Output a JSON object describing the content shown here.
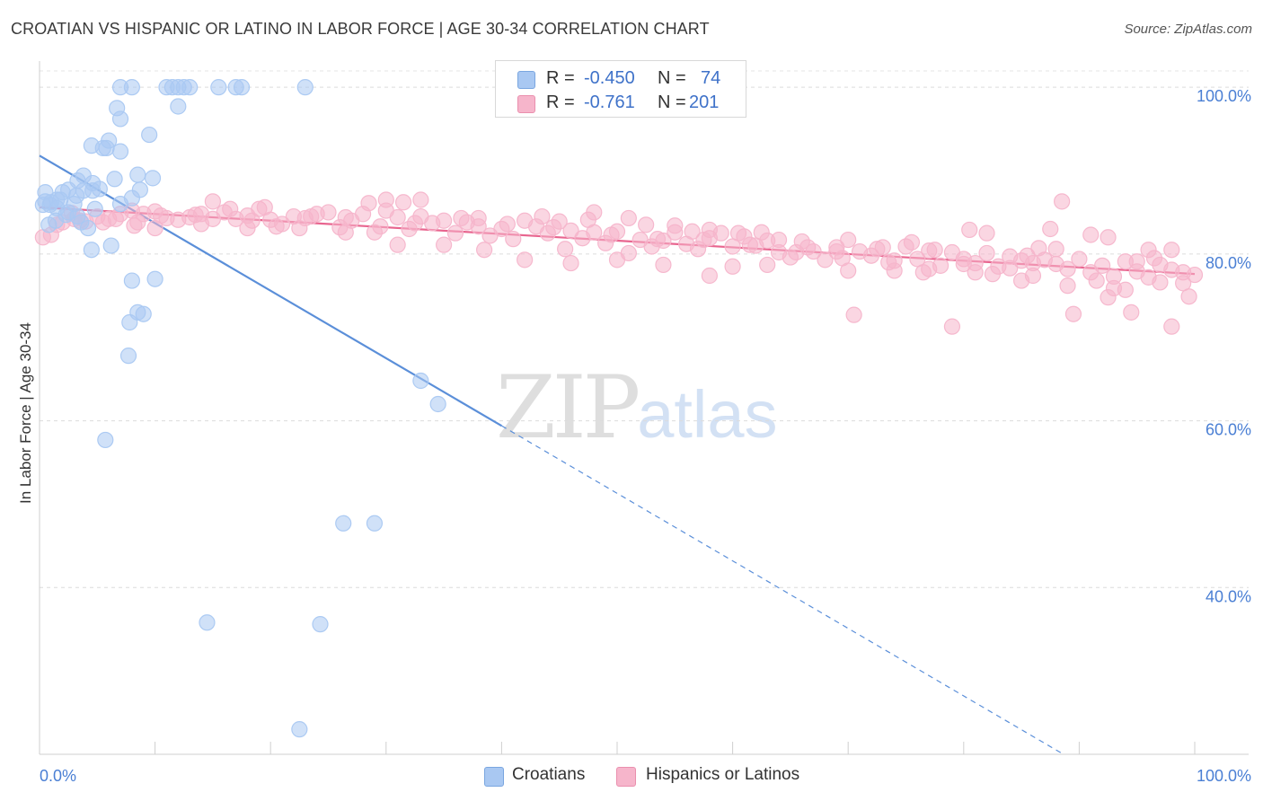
{
  "title": "CROATIAN VS HISPANIC OR LATINO IN LABOR FORCE | AGE 30-34 CORRELATION CHART",
  "source": "Source: ZipAtlas.com",
  "watermark": {
    "part1": "ZIP",
    "part2": "atlas"
  },
  "legend": {
    "rows": [
      {
        "r_label": "R =",
        "r_value": "-0.450",
        "n_label": "N =",
        "n_value": "74",
        "color": "#a9c8f2"
      },
      {
        "r_label": "R =",
        "r_value": "-0.761",
        "n_label": "N =",
        "n_value": "201",
        "color": "#f6b5cb"
      }
    ]
  },
  "bottom_legend": [
    {
      "label": "Croatians",
      "color": "#a9c8f2"
    },
    {
      "label": "Hispanics or Latinos",
      "color": "#f6b5cb"
    }
  ],
  "chart_data": {
    "type": "scatter",
    "title": "CROATIAN VS HISPANIC OR LATINO IN LABOR FORCE | AGE 30-34 CORRELATION CHART",
    "xlabel": "",
    "ylabel": "In Labor Force | Age 30-34",
    "xlim": [
      0,
      100
    ],
    "ylim": [
      20,
      104
    ],
    "x_tick_labels": [
      "0.0%",
      "100.0%"
    ],
    "y_ticks": [
      40,
      60,
      80,
      100
    ],
    "y_tick_labels": [
      "40.0%",
      "60.0%",
      "80.0%",
      "100.0%"
    ],
    "grid": true,
    "series": [
      {
        "name": "Croatians",
        "color": "#5b8fd9",
        "fill": "#a9c8f2",
        "trend": {
          "x1": 0,
          "y1": 91.8,
          "x2": 100,
          "y2": 10.8,
          "solid_until_x": 40
        },
        "points": [
          [
            7,
            100
          ],
          [
            8,
            100
          ],
          [
            11,
            100
          ],
          [
            11.5,
            100
          ],
          [
            12,
            100
          ],
          [
            12.5,
            100
          ],
          [
            13,
            100
          ],
          [
            15.5,
            100
          ],
          [
            17,
            100
          ],
          [
            17.5,
            100
          ],
          [
            23,
            100
          ],
          [
            6.7,
            97.5
          ],
          [
            12,
            97.7
          ],
          [
            7,
            96.2
          ],
          [
            9.5,
            94.3
          ],
          [
            6,
            93.6
          ],
          [
            4.5,
            93
          ],
          [
            5.5,
            92.7
          ],
          [
            5.8,
            92.7
          ],
          [
            7,
            92.3
          ],
          [
            8.5,
            89.5
          ],
          [
            9.8,
            89.1
          ],
          [
            3.8,
            89.4
          ],
          [
            6.5,
            89
          ],
          [
            3.3,
            88.8
          ],
          [
            4.6,
            88.5
          ],
          [
            2.5,
            87.7
          ],
          [
            3.8,
            87.6
          ],
          [
            4.6,
            87.6
          ],
          [
            5.2,
            87.8
          ],
          [
            8.7,
            87.7
          ],
          [
            2,
            87.4
          ],
          [
            3.2,
            87
          ],
          [
            0.5,
            87.4
          ],
          [
            8,
            86.7
          ],
          [
            0.5,
            86.3
          ],
          [
            1,
            86.2
          ],
          [
            1.5,
            86.5
          ],
          [
            1.8,
            86.5
          ],
          [
            3,
            86
          ],
          [
            7,
            86
          ],
          [
            0.3,
            85.9
          ],
          [
            0.9,
            85.9
          ],
          [
            1.5,
            85.5
          ],
          [
            4.8,
            85.4
          ],
          [
            2.5,
            85
          ],
          [
            2.3,
            84.7
          ],
          [
            3.3,
            84.5
          ],
          [
            1.4,
            84
          ],
          [
            3.6,
            83.8
          ],
          [
            0.8,
            83.5
          ],
          [
            4.2,
            83.1
          ],
          [
            6.2,
            81
          ],
          [
            4.5,
            80.5
          ],
          [
            8,
            76.8
          ],
          [
            10,
            77
          ],
          [
            8.5,
            73
          ],
          [
            9,
            72.8
          ],
          [
            7.8,
            71.8
          ],
          [
            7.7,
            67.8
          ],
          [
            33,
            64.8
          ],
          [
            34.5,
            62
          ],
          [
            5.7,
            57.7
          ],
          [
            26.3,
            47.7
          ],
          [
            29,
            47.7
          ],
          [
            14.5,
            35.8
          ],
          [
            24.3,
            35.6
          ],
          [
            22.5,
            23
          ]
        ]
      },
      {
        "name": "Hispanics or Latinos",
        "color": "#e8658f",
        "fill": "#f6b5cb",
        "trend": {
          "x1": 0,
          "y1": 85.6,
          "x2": 100,
          "y2": 77.6,
          "solid_until_x": 100
        },
        "points": [
          [
            0.3,
            82
          ],
          [
            1,
            82.3
          ],
          [
            2,
            83.8
          ],
          [
            3,
            84.2
          ],
          [
            4,
            83.9
          ],
          [
            5,
            84.5
          ],
          [
            6,
            84.2
          ],
          [
            7,
            84.8
          ],
          [
            8,
            85.2
          ],
          [
            8.5,
            83.8
          ],
          [
            9,
            84.8
          ],
          [
            10,
            85.1
          ],
          [
            11,
            84.3
          ],
          [
            12,
            84.1
          ],
          [
            13,
            84.4
          ],
          [
            14,
            84.8
          ],
          [
            15,
            84.2
          ],
          [
            16,
            85
          ],
          [
            17,
            84.2
          ],
          [
            18,
            84.6
          ],
          [
            19,
            85.4
          ],
          [
            20,
            84.1
          ],
          [
            21,
            83.6
          ],
          [
            22,
            84.5
          ],
          [
            23,
            84.3
          ],
          [
            24,
            84.8
          ],
          [
            25,
            85
          ],
          [
            26,
            83.2
          ],
          [
            27,
            84
          ],
          [
            28,
            84.8
          ],
          [
            29,
            82.6
          ],
          [
            30,
            85.2
          ],
          [
            31,
            84.4
          ],
          [
            32,
            83
          ],
          [
            33,
            84.5
          ],
          [
            34,
            83.7
          ],
          [
            35,
            84
          ],
          [
            36,
            82.5
          ],
          [
            37,
            83.8
          ],
          [
            38,
            83.3
          ],
          [
            39,
            82.2
          ],
          [
            40,
            83
          ],
          [
            41,
            81.8
          ],
          [
            42,
            84
          ],
          [
            43,
            83.3
          ],
          [
            44,
            82.5
          ],
          [
            45,
            83.9
          ],
          [
            46,
            82.8
          ],
          [
            47,
            81.9
          ],
          [
            48,
            82.6
          ],
          [
            49,
            81.3
          ],
          [
            50,
            82.7
          ],
          [
            51,
            80.1
          ],
          [
            52,
            81.7
          ],
          [
            53,
            80.9
          ],
          [
            54,
            81.6
          ],
          [
            55,
            82.6
          ],
          [
            56,
            81.2
          ],
          [
            57,
            80.6
          ],
          [
            58,
            81.9
          ],
          [
            59,
            82.5
          ],
          [
            60,
            80.9
          ],
          [
            61,
            82.1
          ],
          [
            62,
            81
          ],
          [
            63,
            81.6
          ],
          [
            64,
            80.2
          ],
          [
            65,
            79.6
          ],
          [
            66,
            81.5
          ],
          [
            67,
            80.3
          ],
          [
            68,
            79.3
          ],
          [
            69,
            80.8
          ],
          [
            70,
            81.7
          ],
          [
            71,
            80.3
          ],
          [
            72,
            79.8
          ],
          [
            73,
            80.8
          ],
          [
            74,
            79.2
          ],
          [
            75,
            80.9
          ],
          [
            76,
            79.4
          ],
          [
            77,
            80.4
          ],
          [
            78,
            78.6
          ],
          [
            79,
            80.2
          ],
          [
            80,
            79.4
          ],
          [
            81,
            78.9
          ],
          [
            82,
            80.1
          ],
          [
            83,
            78.5
          ],
          [
            84,
            79.7
          ],
          [
            85,
            79.2
          ],
          [
            86,
            77.4
          ],
          [
            87,
            79.3
          ],
          [
            88,
            78.8
          ],
          [
            89,
            78.2
          ],
          [
            90,
            79.4
          ],
          [
            91,
            77.8
          ],
          [
            92,
            78.6
          ],
          [
            93,
            77.3
          ],
          [
            94,
            79.1
          ],
          [
            95,
            77.9
          ],
          [
            96,
            77.2
          ],
          [
            97,
            78.7
          ],
          [
            98,
            78.1
          ],
          [
            99,
            77.8
          ],
          [
            100,
            77.5
          ],
          [
            15,
            86.3
          ],
          [
            19.5,
            85.6
          ],
          [
            28.5,
            86.1
          ],
          [
            30,
            86.5
          ],
          [
            31.5,
            86.2
          ],
          [
            33,
            86.5
          ],
          [
            38,
            84.3
          ],
          [
            43.5,
            84.5
          ],
          [
            47.5,
            84.1
          ],
          [
            51,
            84.3
          ],
          [
            55,
            83.4
          ],
          [
            56.5,
            82.7
          ],
          [
            58,
            82.9
          ],
          [
            60.5,
            82.5
          ],
          [
            62.5,
            82.6
          ],
          [
            64,
            81.7
          ],
          [
            66.5,
            80.8
          ],
          [
            69,
            80.3
          ],
          [
            72.5,
            80.6
          ],
          [
            75.5,
            81.4
          ],
          [
            77.5,
            80.5
          ],
          [
            80.5,
            82.9
          ],
          [
            82,
            82.5
          ],
          [
            86.5,
            80.7
          ],
          [
            88,
            80.6
          ],
          [
            91,
            82.3
          ],
          [
            92.5,
            82
          ],
          [
            95,
            79.1
          ],
          [
            96.5,
            79.5
          ],
          [
            98,
            80.5
          ],
          [
            2.8,
            84.9
          ],
          [
            6.6,
            84.2
          ],
          [
            10.5,
            84.6
          ],
          [
            13.5,
            84.7
          ],
          [
            16.5,
            85.4
          ],
          [
            18.4,
            84
          ],
          [
            20.5,
            83.3
          ],
          [
            23.5,
            84.5
          ],
          [
            26.5,
            84.4
          ],
          [
            29.5,
            83.3
          ],
          [
            32.5,
            83.7
          ],
          [
            36.5,
            84.3
          ],
          [
            40.5,
            83.6
          ],
          [
            44.5,
            83.2
          ],
          [
            49.5,
            82.3
          ],
          [
            53.5,
            81.8
          ],
          [
            57.5,
            81.7
          ],
          [
            61.5,
            81.1
          ],
          [
            65.5,
            80.2
          ],
          [
            69.5,
            79.5
          ],
          [
            73.5,
            79
          ],
          [
            77,
            78.2
          ],
          [
            81,
            77.8
          ],
          [
            85,
            76.8
          ],
          [
            89,
            76.2
          ],
          [
            93,
            75.9
          ],
          [
            97,
            76.6
          ],
          [
            99.5,
            74.9
          ],
          [
            70.5,
            72.7
          ],
          [
            89.5,
            72.8
          ],
          [
            92.5,
            74.8
          ],
          [
            94,
            75.7
          ],
          [
            98,
            71.3
          ],
          [
            84,
            78.3
          ],
          [
            86,
            78.9
          ],
          [
            80,
            78.8
          ],
          [
            74,
            78
          ],
          [
            70,
            78
          ],
          [
            63,
            78.7
          ],
          [
            60,
            78.5
          ],
          [
            58,
            77.4
          ],
          [
            54,
            78.7
          ],
          [
            50,
            79.3
          ],
          [
            46,
            78.9
          ],
          [
            42,
            79.3
          ],
          [
            38.5,
            80.5
          ],
          [
            35,
            81.1
          ],
          [
            31,
            81.1
          ],
          [
            26.5,
            82.6
          ],
          [
            22.5,
            83.1
          ],
          [
            18,
            83.1
          ],
          [
            14,
            83.6
          ],
          [
            10,
            83.1
          ],
          [
            8.2,
            83.4
          ],
          [
            5.5,
            83.8
          ],
          [
            3.5,
            84
          ],
          [
            1.5,
            83.5
          ],
          [
            48,
            85
          ],
          [
            52.5,
            83.5
          ],
          [
            45.5,
            80.6
          ],
          [
            99,
            76.5
          ],
          [
            79,
            71.3
          ],
          [
            94.5,
            73
          ],
          [
            82.5,
            77.6
          ],
          [
            76.5,
            77.8
          ],
          [
            88.5,
            86.3
          ],
          [
            87.5,
            83
          ],
          [
            96,
            80.5
          ],
          [
            91.5,
            76.8
          ],
          [
            85.5,
            79.8
          ]
        ]
      }
    ]
  }
}
